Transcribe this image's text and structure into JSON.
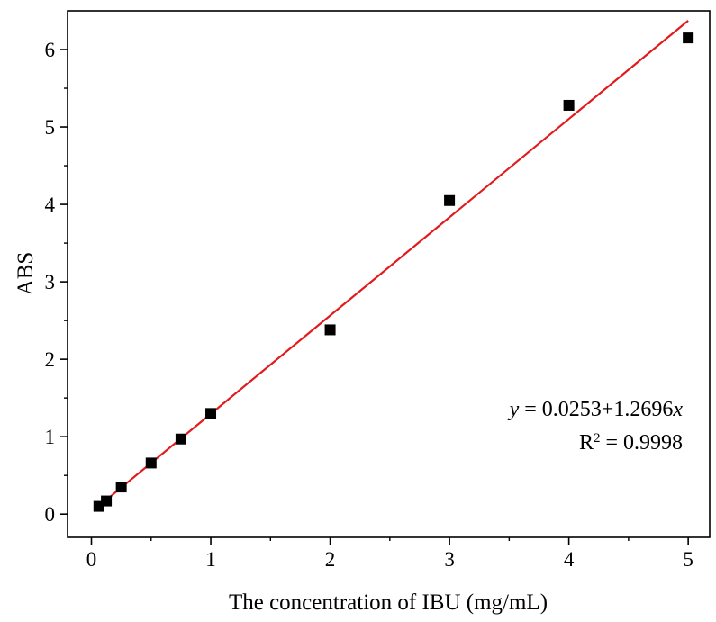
{
  "chart_data": {
    "type": "scatter",
    "xlabel": "The concentration of IBU (mg/mL)",
    "ylabel": "ABS",
    "xlim": [
      -0.2,
      5.18
    ],
    "ylim": [
      -0.3,
      6.5
    ],
    "xticks": [
      0,
      1,
      2,
      3,
      4,
      5
    ],
    "yticks": [
      0,
      1,
      2,
      3,
      4,
      5,
      6
    ],
    "grid": false,
    "series": [
      {
        "marker": "square",
        "color": "#000000",
        "x": [
          0.0625,
          0.125,
          0.25,
          0.5,
          0.75,
          1,
          2,
          3,
          4,
          5
        ],
        "y": [
          0.1,
          0.17,
          0.35,
          0.66,
          0.97,
          1.3,
          2.38,
          4.05,
          5.28,
          6.15
        ]
      }
    ],
    "fit": {
      "type": "linear",
      "color": "#e31a1c",
      "intercept": 0.0253,
      "slope": 1.2696,
      "x_range": [
        0.0625,
        5
      ],
      "equation": {
        "y_var": "y",
        "rhs": " = 0.0253+1.2696",
        "x_var": "x"
      },
      "r2": {
        "label": "R",
        "sup": "2",
        "value": " = 0.9998"
      }
    }
  }
}
